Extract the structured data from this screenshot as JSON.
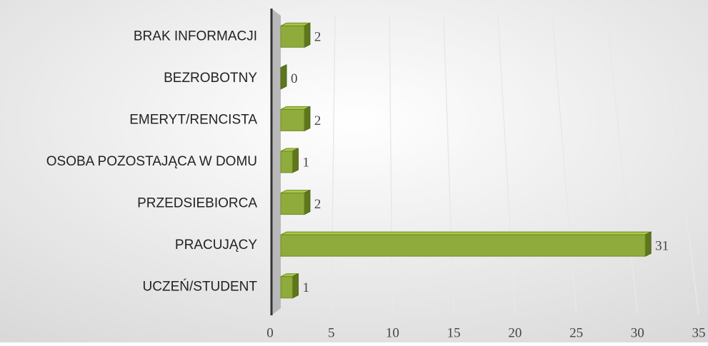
{
  "chart_data": {
    "type": "bar",
    "orientation": "horizontal",
    "categories": [
      "BRAK INFORMACJI",
      "BEZROBOTNY",
      "EMERYT/RENCISTA",
      "OSOBA POZOSTAJĄCA W DOMU",
      "PRZEDSIEBIORCA",
      "PRACUJĄCY",
      "UCZEŃ/STUDENT"
    ],
    "values": [
      2,
      0,
      2,
      1,
      2,
      31,
      1
    ],
    "color": "#8aa832",
    "xlim": [
      0,
      35
    ],
    "xticks": [
      0,
      5,
      10,
      15,
      20,
      25,
      30,
      35
    ],
    "grid": true
  }
}
